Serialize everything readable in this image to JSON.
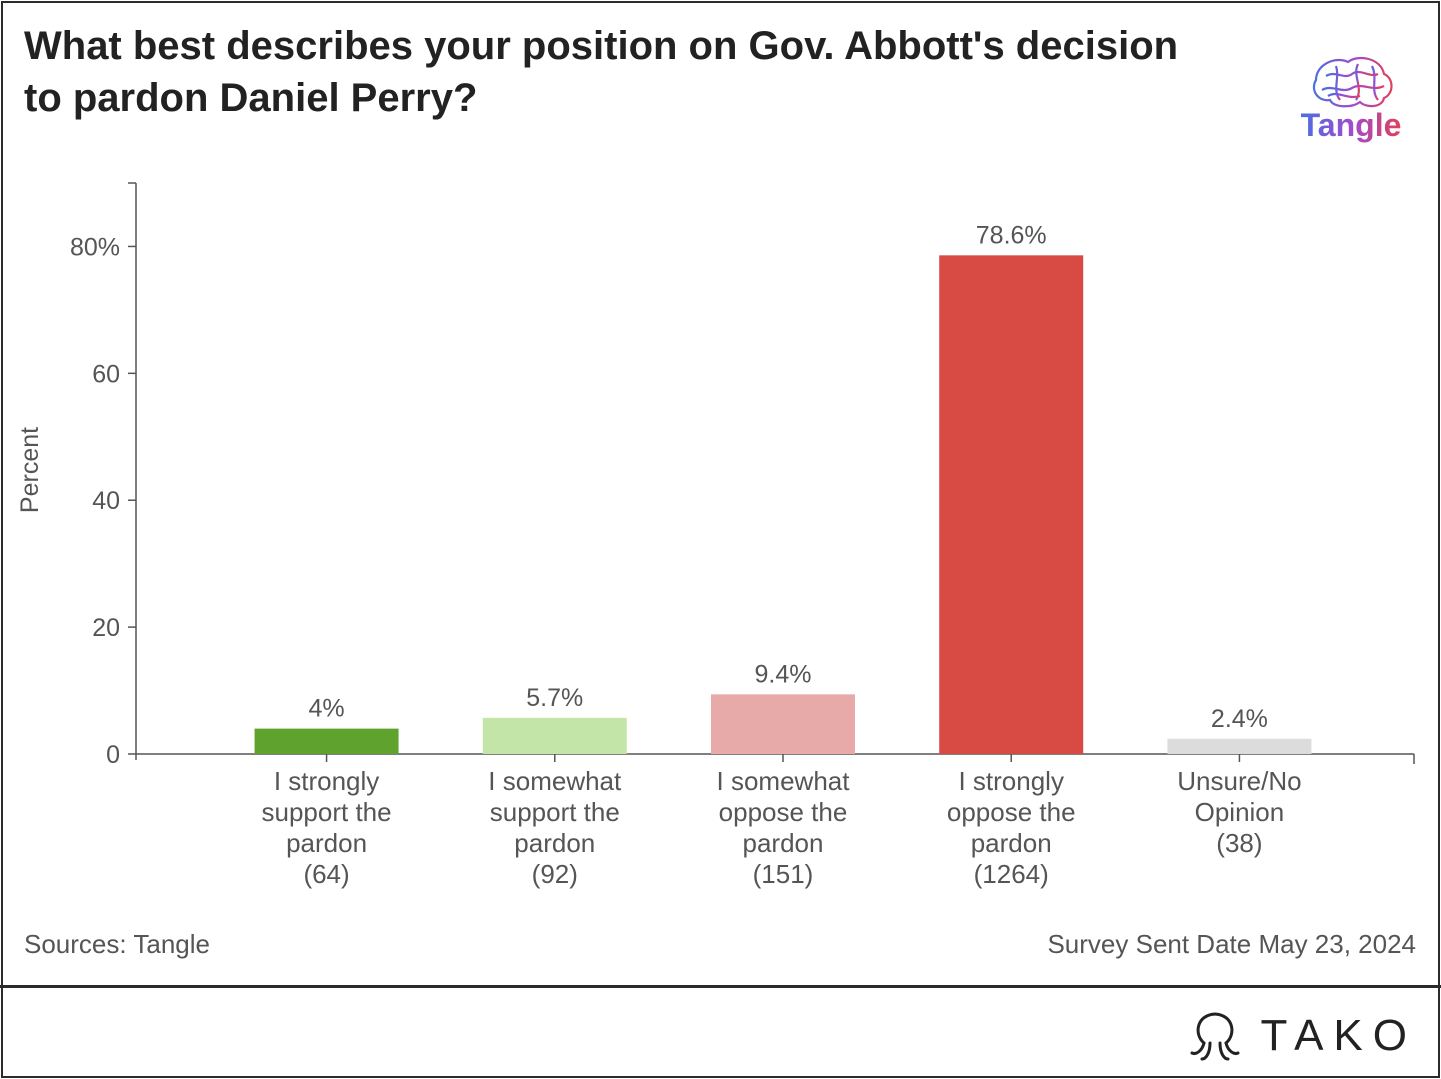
{
  "title": "What best describes your position on Gov. Abbott's decision to pardon Daniel Perry?",
  "brand": {
    "tangle": "Tangle",
    "tako": "TAKO"
  },
  "footer": {
    "sources": "Sources: Tangle",
    "survey_date": "Survey Sent Date May 23, 2024"
  },
  "chart_data": {
    "type": "bar",
    "ylabel": "Percent",
    "xlabel": "",
    "ylim": [
      0,
      90
    ],
    "grid": false,
    "ticks": [
      {
        "value": 0,
        "label": "0"
      },
      {
        "value": 20,
        "label": "20"
      },
      {
        "value": 40,
        "label": "40"
      },
      {
        "value": 60,
        "label": "60"
      },
      {
        "value": 80,
        "label": "80%"
      }
    ],
    "categories": [
      [
        "I strongly",
        "support the",
        "pardon",
        "(64)"
      ],
      [
        "I somewhat",
        "support the",
        "pardon",
        "(92)"
      ],
      [
        "I somewhat",
        "oppose the",
        "pardon",
        "(151)"
      ],
      [
        "I strongly",
        "oppose the",
        "pardon",
        "(1264)"
      ],
      [
        "Unsure/No",
        "Opinion",
        "(38)"
      ]
    ],
    "values": [
      4,
      5.7,
      9.4,
      78.6,
      2.4
    ],
    "value_labels": [
      "4%",
      "5.7%",
      "9.4%",
      "78.6%",
      "2.4%"
    ],
    "colors": [
      "#5fa32e",
      "#c3e6a8",
      "#e8a9a9",
      "#d84a44",
      "#dcdcdc"
    ]
  }
}
